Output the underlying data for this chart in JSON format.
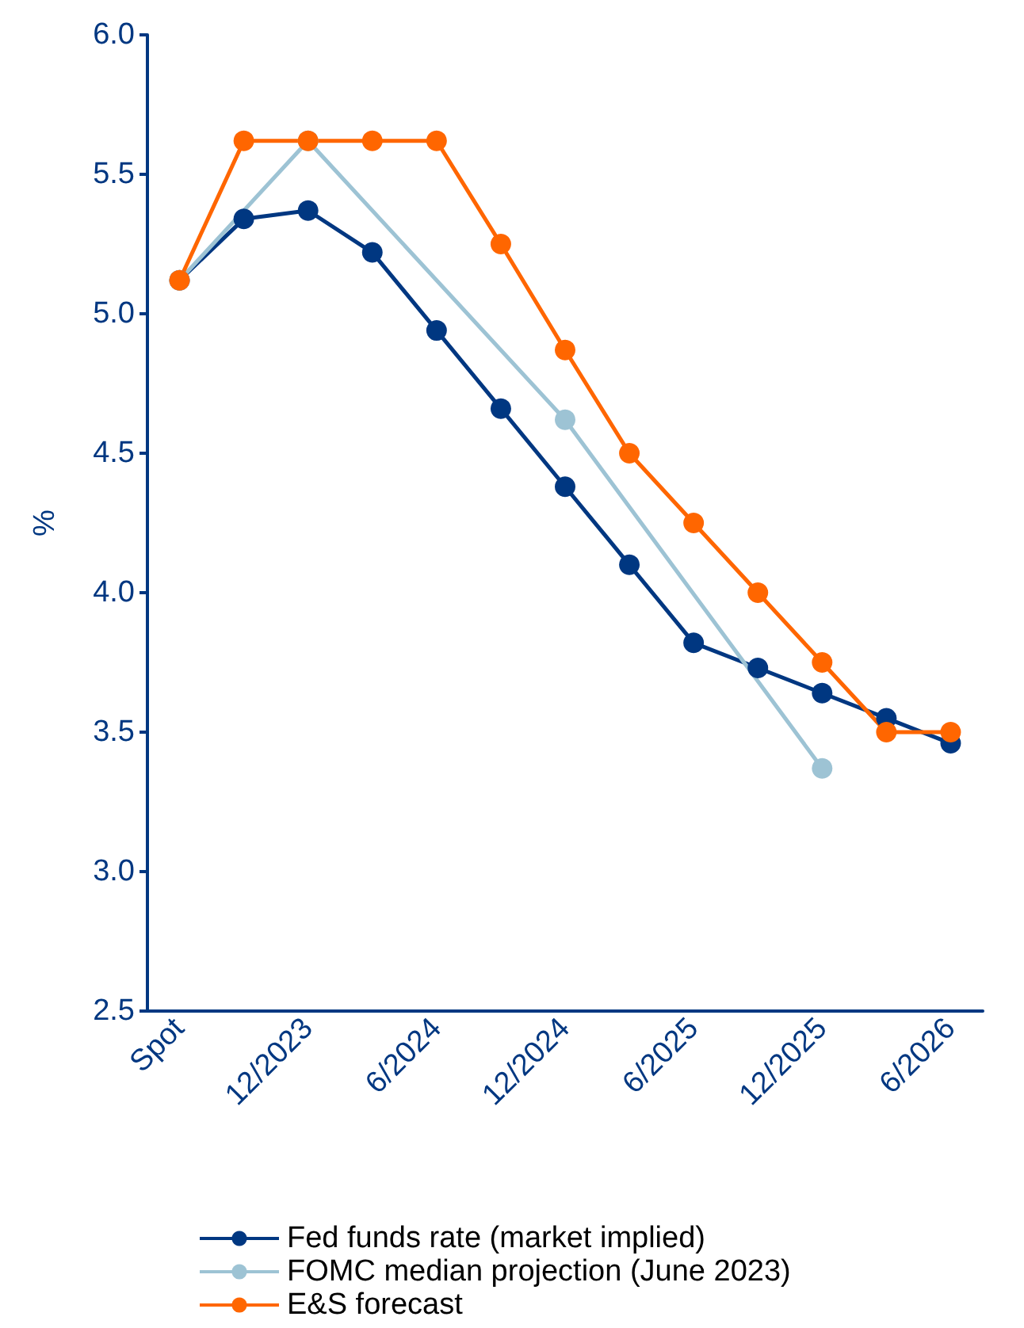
{
  "chart_data": {
    "type": "line",
    "ylabel": "%",
    "categories": [
      "Spot",
      null,
      "12/2023",
      null,
      "6/2024",
      null,
      "12/2024",
      null,
      "6/2025",
      null,
      "12/2025",
      null,
      "6/2026"
    ],
    "series": [
      {
        "name": "Fed funds rate (market implied)",
        "color": "#003781",
        "values": [
          5.12,
          5.34,
          5.37,
          5.22,
          4.94,
          4.66,
          4.38,
          4.1,
          3.82,
          3.73,
          3.64,
          3.55,
          3.46
        ]
      },
      {
        "name": "FOMC median projection (June 2023)",
        "color": "#9dc3d4",
        "values": [
          5.12,
          null,
          5.62,
          null,
          null,
          null,
          4.62,
          null,
          null,
          null,
          3.37,
          null,
          null
        ]
      },
      {
        "name": "E&S forecast",
        "color": "#ff6600",
        "values": [
          5.12,
          5.62,
          5.62,
          5.62,
          5.62,
          5.25,
          4.87,
          4.5,
          4.25,
          4.0,
          3.75,
          3.5,
          3.5
        ]
      }
    ],
    "ylim": [
      2.5,
      6.0
    ],
    "yticks": [
      2.5,
      {
        "value": 3,
        "label": "3.0"
      },
      3.5,
      {
        "value": 4,
        "label": "4.0"
      },
      4.5,
      {
        "value": 5,
        "label": "5.0"
      },
      5.5,
      {
        "value": 6,
        "label": "6.0"
      }
    ],
    "grid": false,
    "legend": "bottom",
    "marker": "circle",
    "line_style": "solid"
  }
}
